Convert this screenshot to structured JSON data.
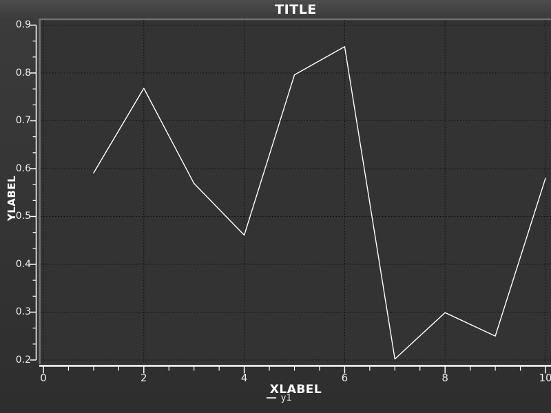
{
  "chart_data": {
    "type": "line",
    "title": "TITLE",
    "xlabel": "XLABEL",
    "ylabel": "YLABEL",
    "x": [
      1,
      2,
      3,
      4,
      5,
      6,
      7,
      8,
      9,
      10
    ],
    "series": [
      {
        "name": "y1",
        "color": "#ffffff",
        "values": [
          0.591,
          0.768,
          0.569,
          0.461,
          0.796,
          0.855,
          0.202,
          0.299,
          0.25,
          0.58
        ]
      }
    ],
    "xlim": [
      0,
      10
    ],
    "ylim": [
      0.2,
      0.9
    ],
    "x_ticks": {
      "values": [
        0,
        2,
        4,
        6,
        8,
        10
      ],
      "labels": [
        "0",
        "2",
        "4",
        "6",
        "8",
        "10"
      ],
      "minor_step": 0.5
    },
    "y_ticks": {
      "values": [
        0.2,
        0.3,
        0.4,
        0.5,
        0.6,
        0.7,
        0.8,
        0.9
      ],
      "labels": [
        "0.2",
        "0.3",
        "0.4",
        "0.5",
        "0.6",
        "0.7",
        "0.8",
        "0.9"
      ],
      "minor_divisions": 3
    },
    "grid": "dotted",
    "legend_position": "bottom-center",
    "colors": {
      "plot_bg": "#333333",
      "bevel_border": "#74716e",
      "grid": "#0b0b0b",
      "axis": "#ffffff",
      "tick_label": "#ececec",
      "line": "#ffffff",
      "title_text": "#ffffff"
    }
  }
}
